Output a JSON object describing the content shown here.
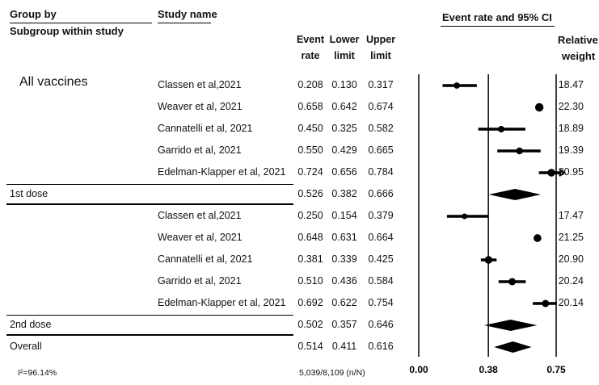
{
  "headers": {
    "group_by": "Group by",
    "subgroup": "Subgroup within study",
    "study_name": "Study name",
    "event_rate_1": "Event",
    "event_rate_2": "rate",
    "lower_1": "Lower",
    "lower_2": "limit",
    "upper_1": "Upper",
    "upper_2": "limit",
    "ci": "Event rate and 95% CI",
    "weight_1": "Relative",
    "weight_2": "weight"
  },
  "group_label": "All vaccines",
  "footer": {
    "heterogeneity": "I²=96.14%",
    "events": "5,039/8,109 (n/N)"
  },
  "chart_data": {
    "type": "forest",
    "x_ticks": [
      "0.00",
      "0.38",
      "0.75"
    ],
    "xlim": [
      0,
      0.75
    ],
    "reference_line": 0.38,
    "subgroups": [
      {
        "label": "1st dose",
        "studies": [
          {
            "name": "Classen et al,2021",
            "rate": "0.208",
            "lower": "0.130",
            "upper": "0.317",
            "weight": "18.47"
          },
          {
            "name": "Weaver et al, 2021",
            "rate": "0.658",
            "lower": "0.642",
            "upper": "0.674",
            "weight": "22.30"
          },
          {
            "name": "Cannatelli et al, 2021",
            "rate": "0.450",
            "lower": "0.325",
            "upper": "0.582",
            "weight": "18.89"
          },
          {
            "name": "Garrido et al, 2021",
            "rate": "0.550",
            "lower": "0.429",
            "upper": "0.665",
            "weight": "19.39"
          },
          {
            "name": "Edelman-Klapper et al, 2021",
            "rate": "0.724",
            "lower": "0.656",
            "upper": "0.784",
            "weight": "20.95"
          }
        ],
        "summary": {
          "rate": "0.526",
          "lower": "0.382",
          "upper": "0.666"
        }
      },
      {
        "label": "2nd dose",
        "studies": [
          {
            "name": "Classen et al,2021",
            "rate": "0.250",
            "lower": "0.154",
            "upper": "0.379",
            "weight": "17.47"
          },
          {
            "name": "Weaver et al, 2021",
            "rate": "0.648",
            "lower": "0.631",
            "upper": "0.664",
            "weight": "21.25"
          },
          {
            "name": "Cannatelli et al, 2021",
            "rate": "0.381",
            "lower": "0.339",
            "upper": "0.425",
            "weight": "20.90"
          },
          {
            "name": "Garrido et al, 2021",
            "rate": "0.510",
            "lower": "0.436",
            "upper": "0.584",
            "weight": "20.24"
          },
          {
            "name": "Edelman-Klapper et al, 2021",
            "rate": "0.692",
            "lower": "0.622",
            "upper": "0.754",
            "weight": "20.14"
          }
        ],
        "summary": {
          "rate": "0.502",
          "lower": "0.357",
          "upper": "0.646"
        }
      }
    ],
    "overall": {
      "label": "Overall",
      "rate": "0.514",
      "lower": "0.411",
      "upper": "0.616"
    }
  }
}
